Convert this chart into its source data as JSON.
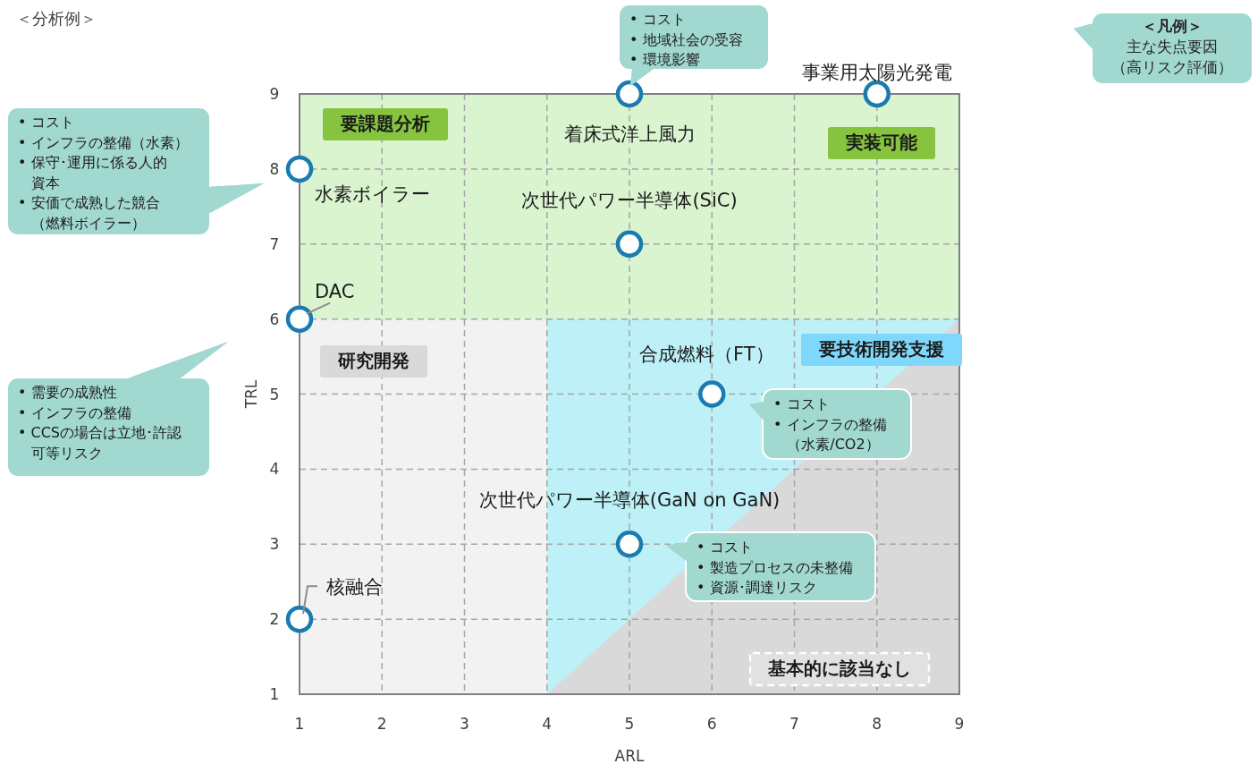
{
  "chart_data": {
    "type": "scatter",
    "title": "＜分析例＞",
    "xlabel": "ARL",
    "ylabel": "TRL",
    "xlim": [
      1,
      9
    ],
    "ylim": [
      1,
      9
    ],
    "xticks": [
      1,
      2,
      3,
      4,
      5,
      6,
      7,
      8,
      9
    ],
    "yticks": [
      1,
      2,
      3,
      4,
      5,
      6,
      7,
      8,
      9
    ],
    "grid": true,
    "bands": [
      {
        "axis": "x",
        "from": 1,
        "to": 4,
        "color": "#f2f2f2"
      },
      {
        "axis": "x",
        "from": 4,
        "to": 9,
        "color": "#bdf1f7"
      },
      {
        "axis": "y",
        "from": 6,
        "to": 9,
        "color": "#d9f4cf"
      }
    ],
    "series": [
      {
        "type": "scatter",
        "x": [
          8,
          5,
          1,
          5,
          1,
          6,
          5,
          1
        ],
        "values": [
          9,
          9,
          8,
          7,
          6,
          5,
          3,
          2
        ],
        "color": "#1a7bb0",
        "marker": "circle"
      },
      {
        "type": "area",
        "x": [
          4,
          9
        ],
        "values": [
          1,
          6
        ],
        "color": "#d9d9d9",
        "marker": "none"
      }
    ],
    "annotations": [
      "＜凡例＞主な失点要因（高リスク評価）",
      {
        "text": "事業用太陽光発電",
        "x": 8,
        "y": 9
      },
      {
        "text": "着床式洋上風力",
        "x": 5,
        "y": 9
      },
      {
        "text": "水素ボイラー",
        "x": 1,
        "y": 8
      },
      {
        "text": "次世代パワー半導体(SiC)",
        "x": 5,
        "y": 7
      },
      {
        "text": "DAC",
        "x": 1,
        "y": 6
      },
      {
        "text": "合成燃料（FT）",
        "x": 6,
        "y": 5
      },
      {
        "text": "次世代パワー半導体(GaN on GaN)",
        "x": 5,
        "y": 3
      },
      {
        "text": "核融合",
        "x": 1,
        "y": 2
      },
      "要課題分析",
      "実装可能",
      "研究開発",
      "要技術開発支援",
      "基本的に該当なし",
      "• コスト\n• 地域社会の受容\n• 環境影響",
      "• コスト\n• インフラの整備（水素）\n• 保守･運用に係る人的資本\n• 安価で成熟した競合（燃料ボイラー）",
      "• 需要の成熟性\n• インフラの整備\n• CCSの場合は立地･許認可等リスク",
      "• コスト\n• インフラの整備（水素/CO2）",
      "• コスト\n• 製造プロセスの未整備\n• 資源･調達リスク"
    ]
  }
}
